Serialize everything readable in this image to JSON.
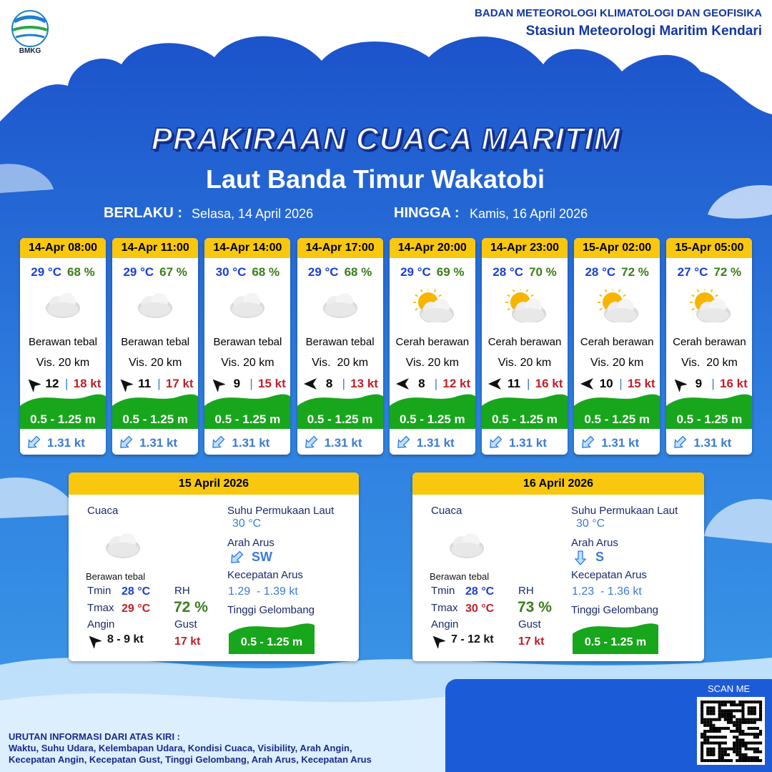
{
  "header": {
    "logo": "BMKG",
    "agency": "BADAN METEOROLOGI KLIMATOLOGI DAN GEOFISIKA",
    "station": "Stasiun Meteorologi Maritim Kendari"
  },
  "title": "PRAKIRAAN CUACA MARITIM",
  "subtitle": "Laut Banda Timur Wakatobi",
  "validity": {
    "from_label": "BERLAKU :",
    "from": "Selasa, 14 April 2026",
    "to_label": "HINGGA :",
    "to": "Kamis, 16 April 2026"
  },
  "forecasts": [
    {
      "time": "14-Apr 08:00",
      "temp": "29 °C",
      "rh": "68 %",
      "icon": "cloud",
      "weather": "Berawan tebal",
      "vis": "Vis. 20 km",
      "wind_arrow": -135,
      "wind": "12",
      "gust": "18 kt",
      "wave": "0.5 - 1.25 m",
      "current_arrow": 135,
      "current": "1.31 kt"
    },
    {
      "time": "14-Apr 11:00",
      "temp": "29 °C",
      "rh": "67 %",
      "icon": "cloud",
      "weather": "Berawan tebal",
      "vis": "Vis. 20 km",
      "wind_arrow": -135,
      "wind": "11",
      "gust": "17 kt",
      "wave": "0.5 - 1.25 m",
      "current_arrow": 135,
      "current": "1.31 kt"
    },
    {
      "time": "14-Apr 14:00",
      "temp": "30 °C",
      "rh": "68 %",
      "icon": "cloud",
      "weather": "Berawan tebal",
      "vis": "Vis. 20 km",
      "wind_arrow": -135,
      "wind": "9",
      "gust": "15 kt",
      "wave": "0.5 - 1.25 m",
      "current_arrow": 135,
      "current": "1.31 kt"
    },
    {
      "time": "14-Apr 17:00",
      "temp": "29 °C",
      "rh": "68 %",
      "icon": "cloud",
      "weather": "Berawan tebal",
      "vis": "Vis.  20 km",
      "wind_arrow": 180,
      "wind": "8",
      "gust": "13 kt",
      "wave": "0.5 - 1.25 m",
      "current_arrow": 135,
      "current": "1.31 kt"
    },
    {
      "time": "14-Apr 20:00",
      "temp": "29 °C",
      "rh": "69 %",
      "icon": "sun-cloud",
      "weather": "Cerah berawan",
      "vis": "Vis. 20 km",
      "wind_arrow": 180,
      "wind": "8",
      "gust": "12 kt",
      "wave": "0.5 - 1.25 m",
      "current_arrow": 135,
      "current": "1.31 kt"
    },
    {
      "time": "14-Apr 23:00",
      "temp": "28 °C",
      "rh": "70 %",
      "icon": "sun-cloud",
      "weather": "Cerah berawan",
      "vis": "Vis. 20 km",
      "wind_arrow": 180,
      "wind": "11",
      "gust": "16 kt",
      "wave": "0.5 - 1.25 m",
      "current_arrow": 135,
      "current": "1.31 kt"
    },
    {
      "time": "15-Apr 02:00",
      "temp": "28 °C",
      "rh": "72 %",
      "icon": "sun-cloud",
      "weather": "Cerah berawan",
      "vis": "Vis. 20 km",
      "wind_arrow": 180,
      "wind": "10",
      "gust": "15 kt",
      "wave": "0.5 - 1.25 m",
      "current_arrow": 135,
      "current": "1.31 kt"
    },
    {
      "time": "15-Apr 05:00",
      "temp": "27 °C",
      "rh": "72 %",
      "icon": "sun-cloud",
      "weather": "Cerah berawan",
      "vis": "Vis.  20 km",
      "wind_arrow": -135,
      "wind": "9",
      "gust": "16 kt",
      "wave": "0.5 - 1.25 m",
      "current_arrow": 135,
      "current": "1.31 kt"
    }
  ],
  "daily": [
    {
      "date": "15 April 2026",
      "weather_label": "Cuaca",
      "weather": "Berawan tebal",
      "tmin_label": "Tmin",
      "tmin": "28 °C",
      "tmax_label": "Tmax",
      "tmax": "29 °C",
      "rh_label": "RH",
      "rh": "72 %",
      "wind_label": "Angin",
      "wind": "8 - 9 kt",
      "gust_label": "Gust",
      "gust": "17 kt",
      "sst_label": "Suhu Permukaan Laut",
      "sst": "30 °C",
      "current_dir_label": "Arah Arus",
      "current_arrow": 135,
      "current_dir": "SW",
      "current_speed_label": "Kecepatan Arus",
      "current_speed": "1.29  - 1.39 kt",
      "wave_label": "Tinggi Gelombang",
      "wave": "0.5 - 1.25 m"
    },
    {
      "date": "16 April 2026",
      "weather_label": "Cuaca",
      "weather": "Berawan tebal",
      "tmin_label": "Tmin",
      "tmin": "28 °C",
      "tmax_label": "Tmax",
      "tmax": "30 °C",
      "rh_label": "RH",
      "rh": "73 %",
      "wind_label": "Angin",
      "wind": "7 - 12 kt",
      "gust_label": "Gust",
      "gust": "17 kt",
      "sst_label": "Suhu Permukaan Laut",
      "sst": "30 °C",
      "current_dir_label": "Arah Arus",
      "current_arrow": 90,
      "current_dir": "S",
      "current_speed_label": "Kecepatan Arus",
      "current_speed": "1.23  - 1.36 kt",
      "wave_label": "Tinggi Gelombang",
      "wave": "0.5 - 1.25 m"
    }
  ],
  "footer": {
    "scan": "SCAN ME",
    "legend_title": "URUTAN INFORMASI DARI ATAS KIRI :",
    "legend_lines": [
      "Waktu, Suhu Udara, Kelembapan Udara, Kondisi Cuaca, Visibility, Arah Angin,",
      "Kecepatan Angin, Kecepatan Gust, Tinggi Gelombang, Arah Arus, Kecepatan Arus"
    ]
  }
}
